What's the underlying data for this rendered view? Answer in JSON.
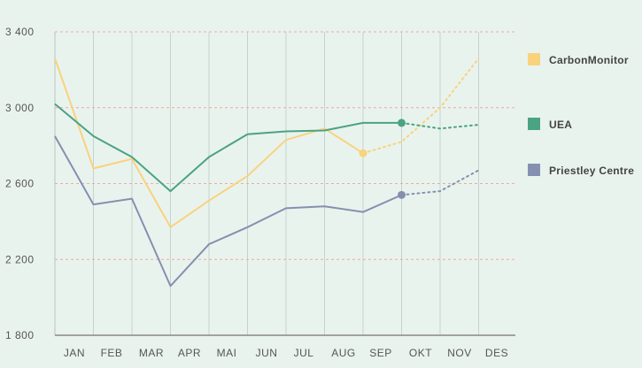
{
  "chart_data": {
    "type": "line",
    "categories": [
      "JAN",
      "FEB",
      "MAR",
      "APR",
      "MAI",
      "JUN",
      "JUL",
      "AUG",
      "SEP",
      "OKT",
      "NOV",
      "DES"
    ],
    "ylim": [
      1800,
      3400
    ],
    "yticks": [
      1800,
      2200,
      2600,
      3000,
      3400
    ],
    "ytick_labels": [
      "1 800",
      "2 200",
      "2 600",
      "3 000",
      "3 400"
    ],
    "grid": "horizontal dashed, vertical solid",
    "legend_position": "right",
    "series": [
      {
        "name": "CarbonMonitor",
        "color": "#f9d27e",
        "values": [
          3260,
          2680,
          2730,
          2370,
          2510,
          2640,
          2830,
          2890,
          2760,
          2820,
          3000,
          3260
        ],
        "last_actual_index": 8
      },
      {
        "name": "UEA",
        "color": "#4aa384",
        "values": [
          3020,
          2850,
          2740,
          2560,
          2740,
          2860,
          2875,
          2880,
          2920,
          2920,
          2890,
          2910
        ],
        "last_actual_index": 9
      },
      {
        "name": "Priestley Centre",
        "color": "#8590b0",
        "values": [
          2850,
          2490,
          2520,
          2060,
          2280,
          2370,
          2470,
          2480,
          2450,
          2540,
          2560,
          2670
        ],
        "last_actual_index": 9
      }
    ]
  }
}
